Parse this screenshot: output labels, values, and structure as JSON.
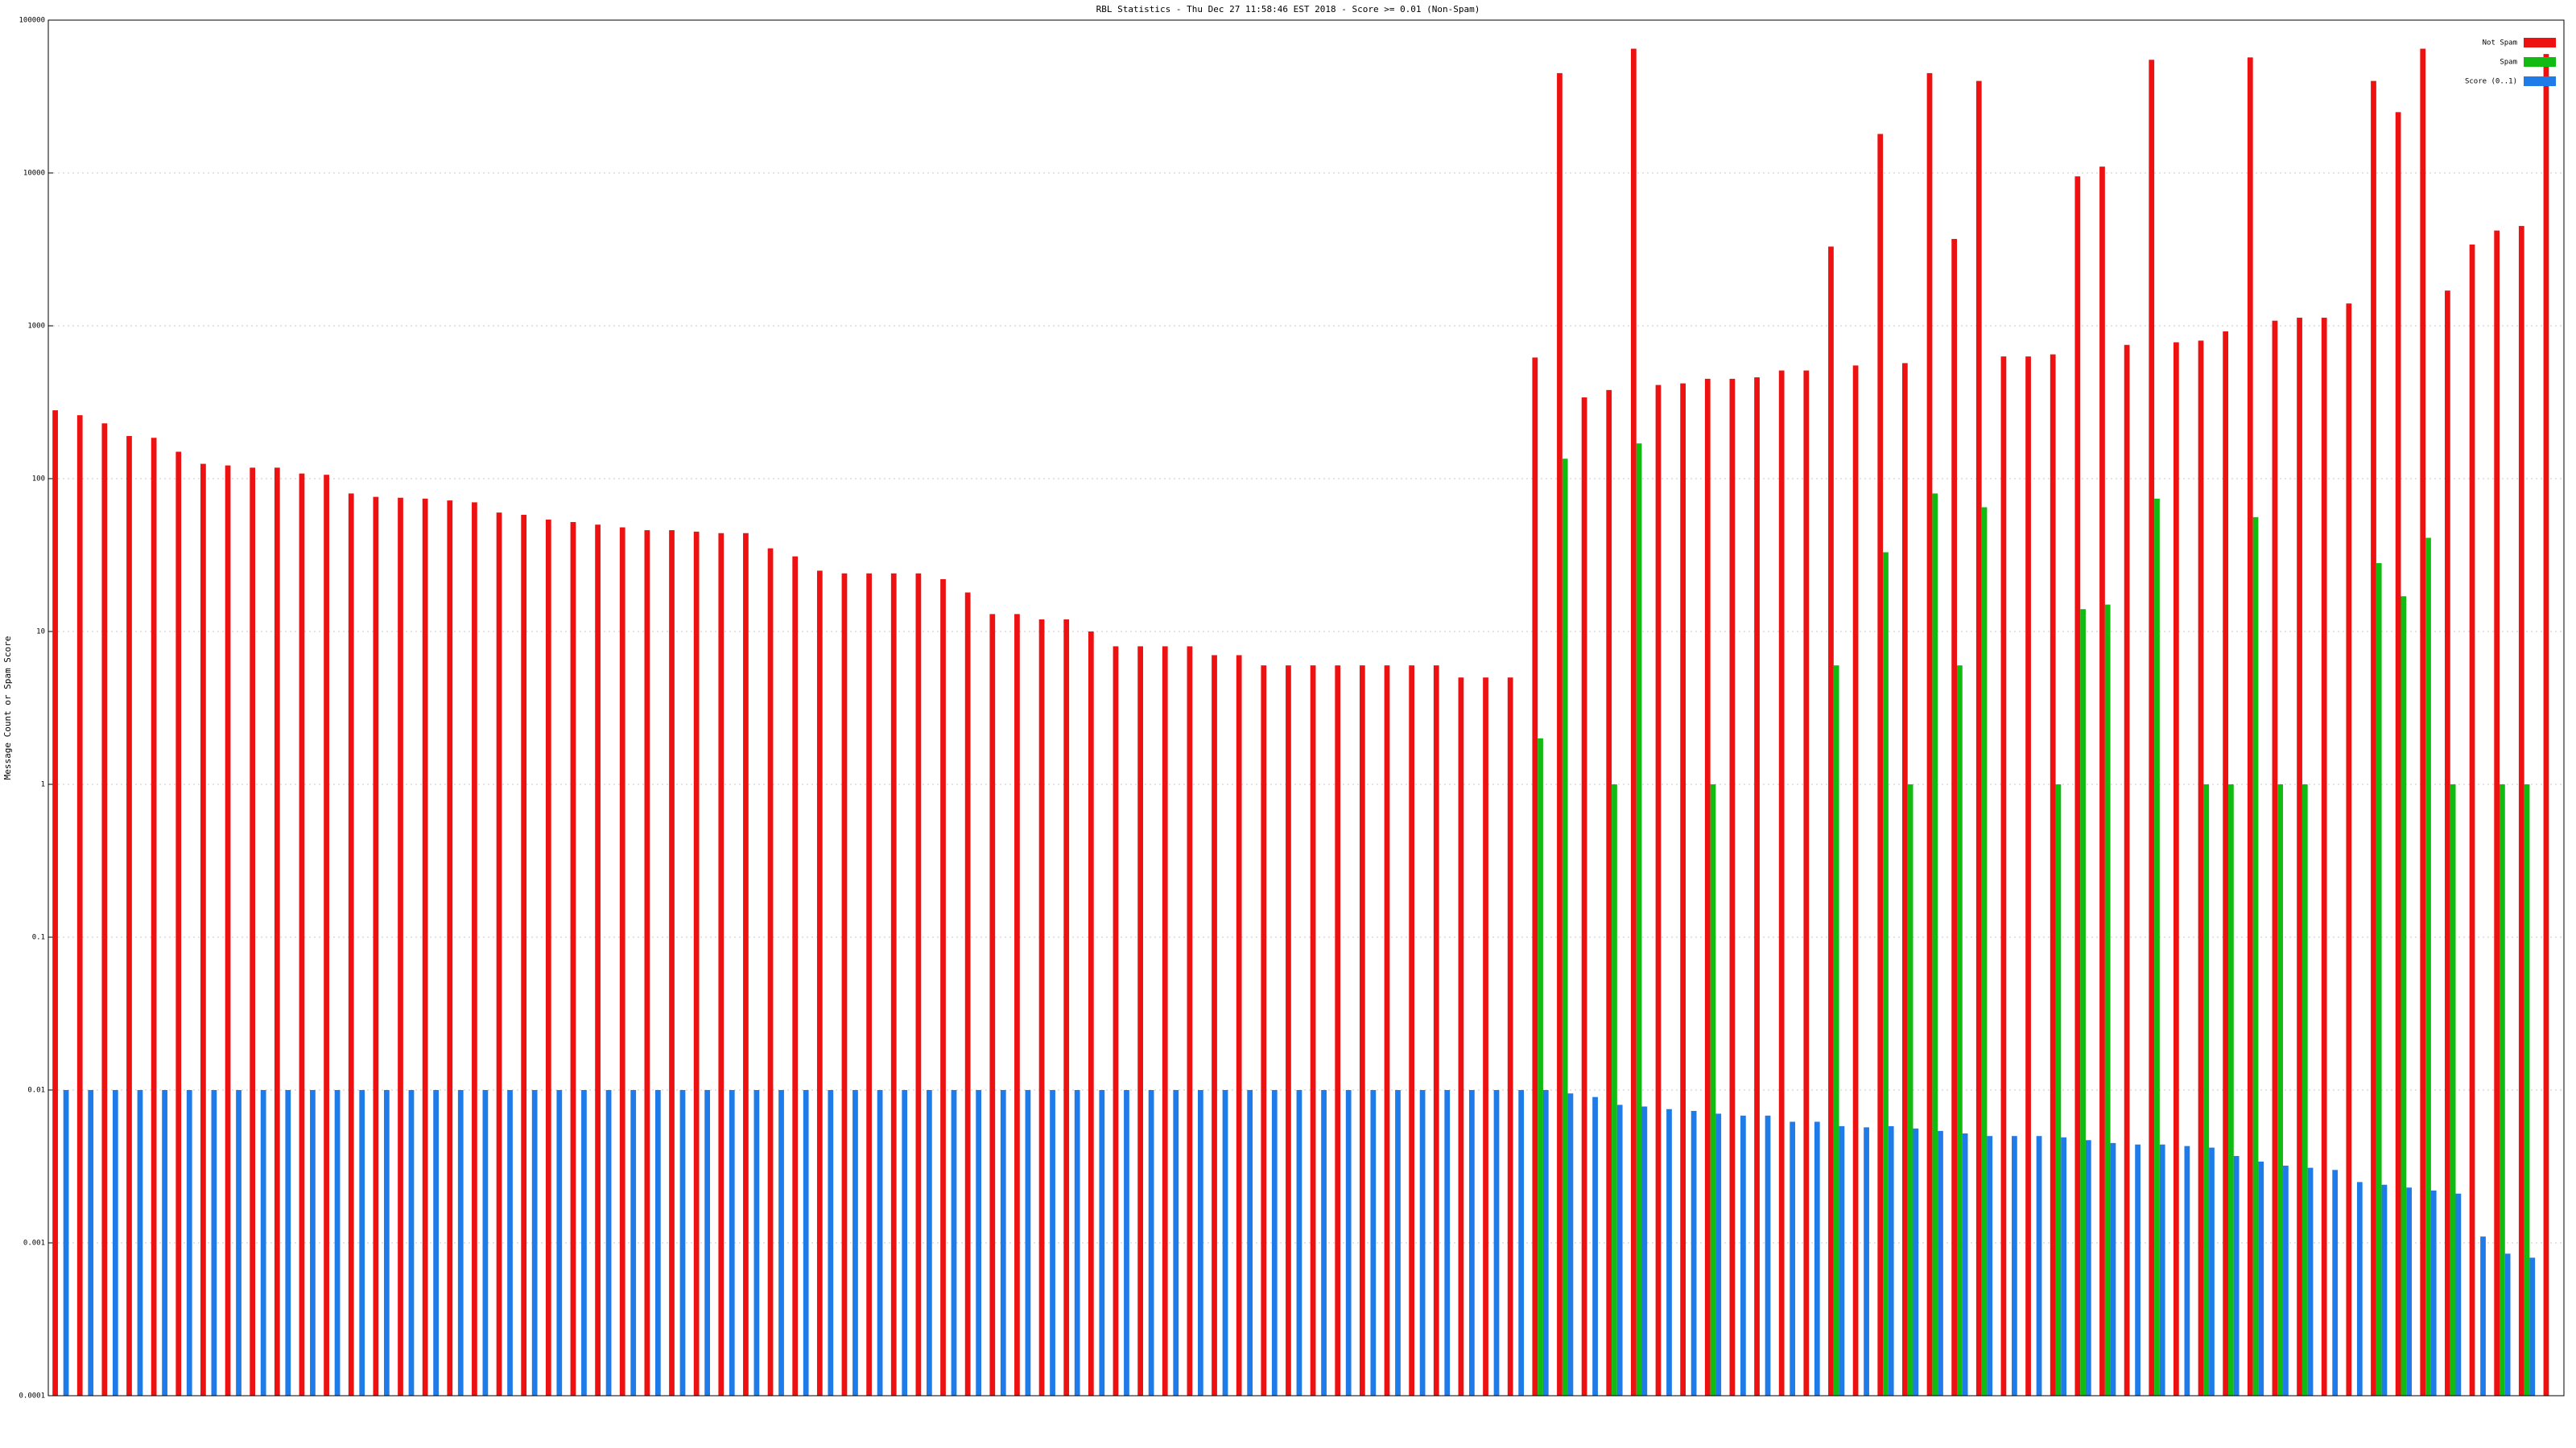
{
  "chart_data": {
    "type": "bar",
    "title": "RBL Statistics - Thu Dec 27 11:58:46 EST 2018 - Score >= 0.01 (Non-Spam)",
    "y_label": "Message Count or Spam Score",
    "log_scale": true,
    "grid": true,
    "legend": "top-right",
    "ylim": [
      0.0001,
      100000
    ],
    "yticks": [
      0.0001,
      0.001,
      0.01,
      0.1,
      1,
      10,
      100,
      1000,
      10000,
      100000
    ],
    "categories": [
      null,
      null,
      null,
      null,
      null,
      null,
      null,
      null,
      null,
      null,
      null,
      null,
      null,
      null,
      null,
      null,
      null,
      null,
      null,
      null,
      null,
      null,
      null,
      null,
      null,
      null,
      null,
      null,
      null,
      null,
      null,
      null,
      null,
      null,
      null,
      null,
      null,
      null,
      null,
      null,
      null,
      null,
      null,
      null,
      null,
      null,
      null,
      null,
      null,
      null,
      null,
      null,
      null,
      null,
      null,
      null,
      null,
      null,
      null,
      null,
      null,
      null,
      null,
      null,
      null,
      null,
      null,
      null,
      null,
      null,
      null,
      null,
      null,
      null,
      null,
      null,
      null,
      null,
      null,
      null,
      null,
      null,
      null,
      null,
      null,
      null,
      null,
      null,
      null,
      null,
      null,
      null,
      null,
      null,
      null,
      null,
      null,
      null,
      null,
      null,
      null,
      null
    ],
    "series": [
      {
        "name": "Not Spam",
        "color": "#ee1111",
        "values": [
          280,
          260,
          230,
          190,
          185,
          150,
          125,
          122,
          118,
          118,
          108,
          106,
          80,
          76,
          75,
          74,
          72,
          70,
          60,
          58,
          54,
          52,
          50,
          48,
          46,
          46,
          45,
          44,
          44,
          35,
          31,
          25,
          24,
          24,
          24,
          24,
          22,
          18,
          13,
          13,
          12,
          12,
          10,
          8,
          8,
          8,
          8,
          7,
          7,
          6,
          6,
          6,
          6,
          6,
          6,
          6,
          6,
          5,
          5,
          5,
          620,
          45000,
          340,
          380,
          65000,
          410,
          420,
          450,
          450,
          460,
          510,
          510,
          3300,
          550,
          18000,
          570,
          45000,
          3700,
          40000,
          630,
          630,
          650,
          9500,
          11000,
          750,
          55000,
          780,
          800,
          920,
          57000,
          1080,
          1130,
          1130,
          1400,
          40000,
          25000,
          65000,
          1700,
          3400,
          4200,
          4500,
          60000
        ]
      },
      {
        "name": "Spam",
        "color": "#11bb11",
        "values": [
          null,
          null,
          null,
          null,
          null,
          null,
          null,
          null,
          null,
          null,
          null,
          null,
          null,
          null,
          null,
          null,
          null,
          null,
          null,
          null,
          null,
          null,
          null,
          null,
          null,
          null,
          null,
          null,
          null,
          null,
          null,
          null,
          null,
          null,
          null,
          null,
          null,
          null,
          null,
          null,
          null,
          null,
          null,
          null,
          null,
          null,
          null,
          null,
          null,
          null,
          null,
          null,
          null,
          null,
          null,
          null,
          null,
          null,
          null,
          null,
          2,
          135,
          null,
          1,
          170,
          null,
          null,
          1,
          null,
          null,
          null,
          null,
          6,
          null,
          33,
          1,
          80,
          6,
          65,
          null,
          null,
          1,
          14,
          15,
          null,
          74,
          null,
          1,
          1,
          56,
          1,
          1,
          null,
          null,
          28,
          17,
          41,
          1,
          null,
          1,
          1,
          null
        ]
      },
      {
        "name": "Score (0..1)",
        "color": "#1e7be8",
        "values": [
          0.01,
          0.01,
          0.01,
          0.01,
          0.01,
          0.01,
          0.01,
          0.01,
          0.01,
          0.01,
          0.01,
          0.01,
          0.01,
          0.01,
          0.01,
          0.01,
          0.01,
          0.01,
          0.01,
          0.01,
          0.01,
          0.01,
          0.01,
          0.01,
          0.01,
          0.01,
          0.01,
          0.01,
          0.01,
          0.01,
          0.01,
          0.01,
          0.01,
          0.01,
          0.01,
          0.01,
          0.01,
          0.01,
          0.01,
          0.01,
          0.01,
          0.01,
          0.01,
          0.01,
          0.01,
          0.01,
          0.01,
          0.01,
          0.01,
          0.01,
          0.01,
          0.01,
          0.01,
          0.01,
          0.01,
          0.01,
          0.01,
          0.01,
          0.01,
          0.01,
          0.01,
          0.0095,
          0.009,
          0.008,
          0.0078,
          0.0075,
          0.0073,
          0.007,
          0.0068,
          0.0068,
          0.0062,
          0.0062,
          0.0058,
          0.0057,
          0.0058,
          0.0056,
          0.0054,
          0.0052,
          0.005,
          0.005,
          0.005,
          0.0049,
          0.0047,
          0.0045,
          0.0044,
          0.0044,
          0.0043,
          0.0042,
          0.0037,
          0.0034,
          0.0032,
          0.0031,
          0.003,
          0.0025,
          0.0024,
          0.0023,
          0.0022,
          0.0021,
          0.0011,
          0.00085,
          0.0008,
          null
        ]
      }
    ]
  }
}
